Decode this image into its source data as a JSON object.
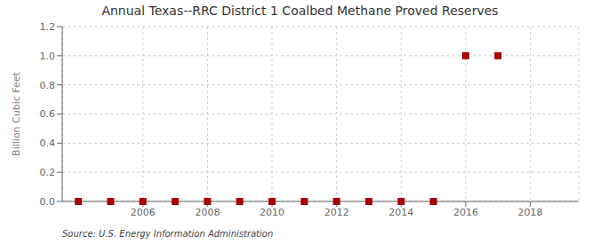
{
  "chart_data": {
    "type": "scatter",
    "title": "Annual Texas--RRC District 1 Coalbed Methane Proved Reserves",
    "ylabel": "Billion Cubic Feet",
    "source": "Source: U.S. Energy Information Administration",
    "x": [
      2004,
      2005,
      2006,
      2007,
      2008,
      2009,
      2010,
      2011,
      2012,
      2013,
      2014,
      2015,
      2016,
      2017
    ],
    "values": [
      0.0,
      0.0,
      0.0,
      0.0,
      0.0,
      0.0,
      0.0,
      0.0,
      0.0,
      0.0,
      0.0,
      0.0,
      1.0,
      1.0
    ],
    "xlim": [
      2003.5,
      2019.5
    ],
    "ylim": [
      0.0,
      1.2
    ],
    "xticks": [
      2006,
      2008,
      2010,
      2012,
      2014,
      2016,
      2018
    ],
    "yticks": [
      {
        "value": 0.0,
        "label": "0.0"
      },
      0.2,
      0.4,
      0.6,
      0.8,
      {
        "value": 1.0,
        "label": "1.0"
      },
      1.2
    ],
    "color": "#aa0000",
    "marker": "square",
    "grid": true
  }
}
